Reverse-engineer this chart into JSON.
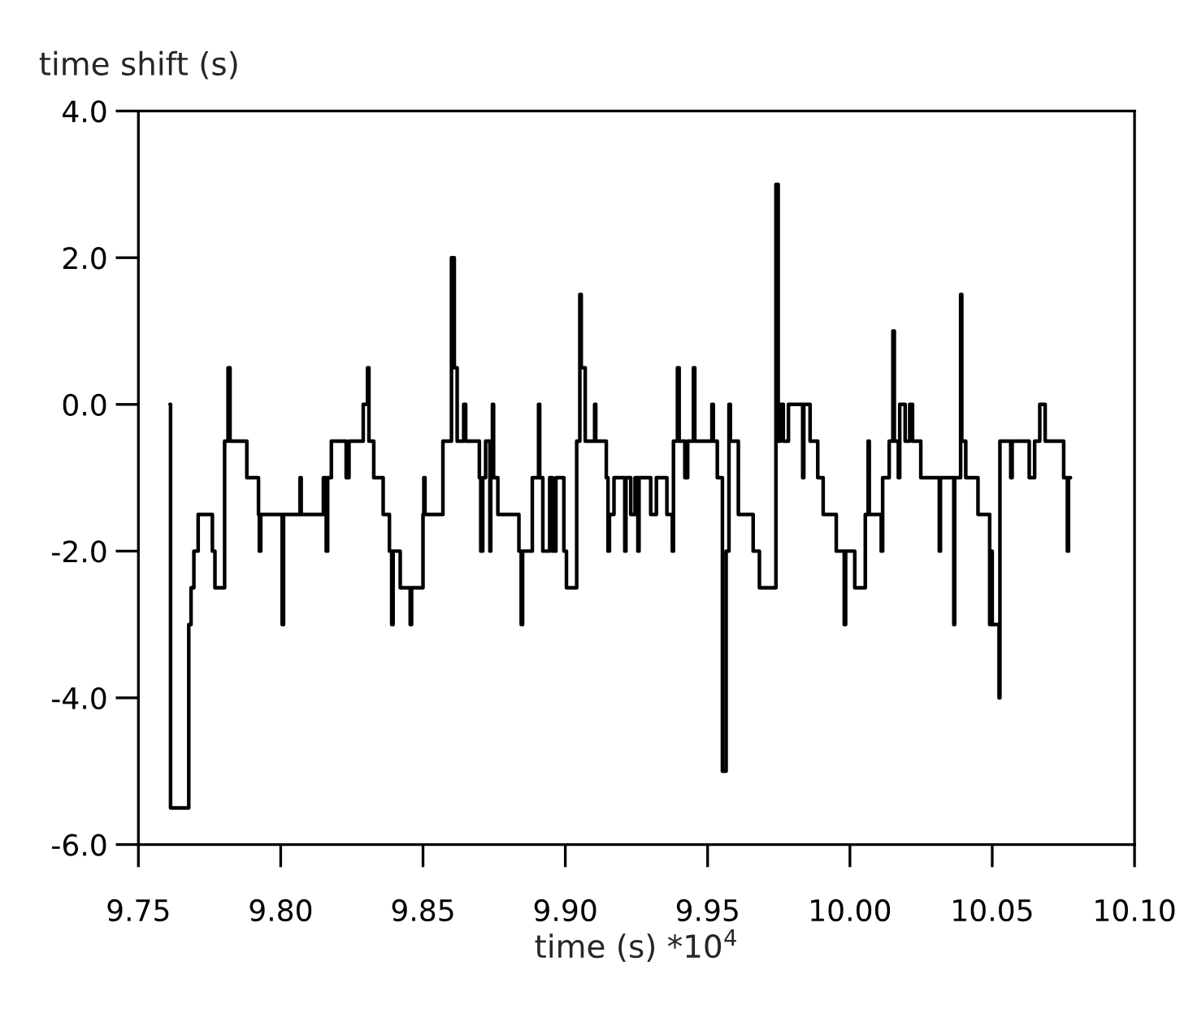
{
  "chart_data": {
    "type": "step",
    "ylabel": "time shift (s)",
    "xlabel": "time (s) *10$^{4}$",
    "xlim": [
      9.75,
      10.1
    ],
    "xticks": [
      {
        "value": 9.75,
        "label": "9.75"
      },
      {
        "value": 9.8,
        "label": "9.80"
      },
      {
        "value": 9.85,
        "label": "9.85"
      },
      {
        "value": 9.9,
        "label": "9.90"
      },
      {
        "value": 9.95,
        "label": "9.95"
      },
      {
        "value": 10.0,
        "label": "10.00"
      },
      {
        "value": 10.05,
        "label": "10.05"
      },
      {
        "value": 10.1,
        "label": "10.10"
      }
    ],
    "ylim": [
      -6,
      4
    ],
    "yticks": [
      {
        "value": -6,
        "label": "-6.0"
      },
      {
        "value": -4,
        "label": "-4.0"
      },
      {
        "value": -2,
        "label": "-2.0"
      },
      {
        "value": 0,
        "label": "0.0"
      },
      {
        "value": 2,
        "label": "2.0"
      },
      {
        "value": 4,
        "label": "4.0"
      }
    ],
    "grid": false,
    "series": [
      {
        "color": "#000000",
        "x": [
          9.7611,
          9.7613,
          9.7677,
          9.7685,
          9.7695,
          9.771,
          9.776,
          9.7769,
          9.7803,
          9.7815,
          9.7822,
          9.7881,
          9.7922,
          9.7925,
          9.793,
          9.8005,
          9.801,
          9.8068,
          9.8072,
          9.815,
          9.816,
          9.8165,
          9.8178,
          9.823,
          9.824,
          9.829,
          9.8305,
          9.831,
          9.8327,
          9.836,
          9.8382,
          9.839,
          9.8395,
          9.842,
          9.8455,
          9.846,
          9.85,
          9.8503,
          9.8507,
          9.857,
          9.86,
          9.861,
          9.862,
          9.8643,
          9.865,
          9.8698,
          9.8703,
          9.871,
          9.872,
          9.8735,
          9.8738,
          9.8744,
          9.8748,
          9.8763,
          9.8837,
          9.8845,
          9.885,
          9.8884,
          9.8906,
          9.891,
          9.8921,
          9.8945,
          9.8955,
          9.8967,
          9.8995,
          9.9004,
          9.904,
          9.9051,
          9.9056,
          9.907,
          9.9103,
          9.9107,
          9.9144,
          9.915,
          9.9155,
          9.9171,
          9.9209,
          9.9213,
          9.923,
          9.9245,
          9.9255,
          9.9259,
          9.93,
          9.932,
          9.9357,
          9.9376,
          9.938,
          9.9394,
          9.94,
          9.942,
          9.943,
          9.945,
          9.9455,
          9.9515,
          9.952,
          9.9534,
          9.9552,
          9.9565,
          9.9575,
          9.958,
          9.9608,
          9.966,
          9.9682,
          9.974,
          9.9748,
          9.9756,
          9.9766,
          9.9784,
          9.9834,
          9.9838,
          9.986,
          9.9887,
          9.9906,
          9.9952,
          9.998,
          9.9985,
          10.0017,
          10.0054,
          10.0064,
          10.0068,
          10.011,
          10.0115,
          10.0138,
          10.0151,
          10.0156,
          10.017,
          10.0175,
          10.0194,
          10.021,
          10.022,
          10.0249,
          10.0314,
          10.0318,
          10.0365,
          10.0368,
          10.0389,
          10.0393,
          10.0407,
          10.045,
          10.0491,
          10.0495,
          10.05,
          10.0524,
          10.0527,
          10.0565,
          10.057,
          10.063,
          10.0649,
          10.0667,
          10.0686,
          10.0751,
          10.0764,
          10.0768,
          10.0775
        ],
        "values": [
          0.0,
          -5.5,
          -3.0,
          -2.5,
          -2.0,
          -1.5,
          -2.0,
          -2.5,
          -0.5,
          0.5,
          -0.5,
          -1.0,
          -1.5,
          -2.0,
          -1.5,
          -3.0,
          -1.5,
          -1.0,
          -1.5,
          -1.0,
          -2.0,
          -1.0,
          -0.5,
          -1.0,
          -0.5,
          0.0,
          0.5,
          -0.5,
          -1.0,
          -1.5,
          -2.0,
          -3.0,
          -2.0,
          -2.5,
          -3.0,
          -2.5,
          -1.5,
          -1.0,
          -1.5,
          -0.5,
          2.0,
          0.5,
          -0.5,
          0.0,
          -0.5,
          -1.0,
          -2.0,
          -1.0,
          -0.5,
          -2.0,
          -1.0,
          0.0,
          -1.0,
          -1.5,
          -2.0,
          -3.0,
          -2.0,
          -1.0,
          0.0,
          -1.0,
          -2.0,
          -1.0,
          -2.0,
          -1.0,
          -2.0,
          -2.5,
          -0.5,
          1.5,
          0.5,
          -0.5,
          0.0,
          -0.5,
          -1.0,
          -2.0,
          -1.5,
          -1.0,
          -2.0,
          -1.0,
          -1.5,
          -1.0,
          -2.0,
          -1.0,
          -1.5,
          -1.0,
          -1.5,
          -2.0,
          -0.5,
          0.5,
          -0.5,
          -1.0,
          -0.5,
          0.5,
          -0.5,
          0.0,
          -0.5,
          -1.0,
          -5.0,
          -2.0,
          0.0,
          -0.5,
          -1.5,
          -2.0,
          -2.5,
          3.0,
          -0.5,
          0.0,
          -0.5,
          0.0,
          -1.0,
          0.0,
          -0.5,
          -1.0,
          -1.5,
          -2.0,
          -3.0,
          -2.0,
          -2.5,
          -1.5,
          -0.5,
          -1.5,
          -2.0,
          -1.0,
          -0.5,
          1.0,
          -0.5,
          -1.0,
          0.0,
          -0.5,
          0.0,
          -0.5,
          -1.0,
          -2.0,
          -1.0,
          -3.0,
          -1.0,
          1.5,
          -0.5,
          -1.0,
          -1.5,
          -3.0,
          -2.0,
          -3.0,
          -4.0,
          -0.5,
          -1.0,
          -0.5,
          -1.0,
          -0.5,
          0.0,
          -0.5,
          -1.0,
          -2.0,
          -1.0,
          -1.0
        ]
      }
    ]
  }
}
